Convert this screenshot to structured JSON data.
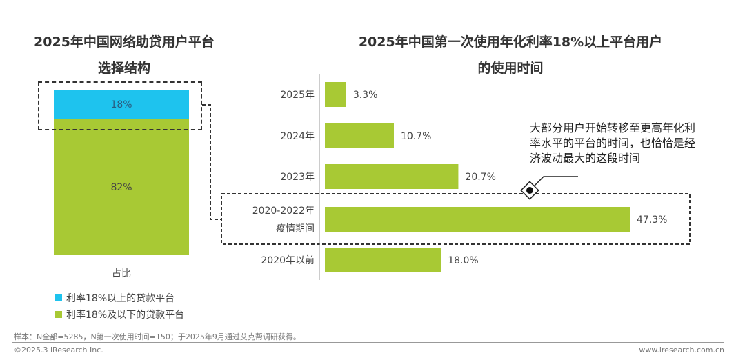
{
  "colors": {
    "high": "#1EC3EE",
    "low": "#A8C934",
    "text": "#333333"
  },
  "chart_data": [
    {
      "type": "bar",
      "stacked": true,
      "title": "2025年中国网络助贷用户平台选择结构",
      "categories": [
        "占比"
      ],
      "series": [
        {
          "name": "利率18%以上的贷款平台",
          "values": [
            18
          ],
          "label": "18%"
        },
        {
          "name": "利率18%及以下的贷款平台",
          "values": [
            82
          ],
          "label": "82%"
        }
      ],
      "legend": "bottom-left"
    },
    {
      "type": "bar",
      "orientation": "horizontal",
      "title": "2025年中国第一次使用年化利率18%以上平台用户的使用时间",
      "categories": [
        "2025年",
        "2024年",
        "2023年",
        "2020-2022年 疫情期间",
        "2020年以前"
      ],
      "values": [
        3.3,
        10.7,
        20.7,
        47.3,
        18.0
      ],
      "labels": [
        "3.3%",
        "10.7%",
        "20.7%",
        "47.3%",
        "18.0%"
      ],
      "annotation": "大部分用户开始转移至更高年化利率水平的平台的时间，也恰恰是经济波动最大的这段时间"
    }
  ],
  "left": {
    "title1": "2025年中国网络助贷用户平台",
    "title2": "选择结构",
    "xlabel": "占比",
    "seg_high": "18%",
    "seg_low": "82%",
    "legend_high": "利率18%以上的贷款平台",
    "legend_low": "利率18%及以下的贷款平台"
  },
  "right": {
    "title1": "2025年中国第一次使用年化利率18%以上平台用户",
    "title2": "的使用时间",
    "cat_lines": [
      [
        "2025年"
      ],
      [
        "2024年"
      ],
      [
        "2023年"
      ],
      [
        "2020-2022年",
        "疫情期间"
      ],
      [
        "2020年以前"
      ]
    ],
    "annot_lines": [
      "大部分用户开始转移至更高年化利",
      "率水平的平台的时间，也恰恰是经",
      "济波动最大的这段时间"
    ]
  },
  "footer": {
    "note": "样本：N全部=5285，N第一次使用时间=150；于2025年9月通过艾克帮调研获得。",
    "copyright": "©2025.3 iResearch Inc.",
    "url": "www.iresearch.com.cn"
  }
}
